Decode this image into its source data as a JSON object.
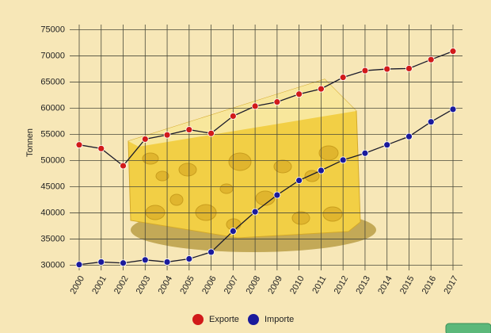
{
  "chart_data": {
    "type": "line",
    "y_label": "Tonnen",
    "x": [
      "2000",
      "2001",
      "2002",
      "2003",
      "2004",
      "2005",
      "2006",
      "2007",
      "2008",
      "2009",
      "2010",
      "2011",
      "2012",
      "2013",
      "2014",
      "2015",
      "2016",
      "2017"
    ],
    "series": [
      {
        "name": "Exporte",
        "color": "#d11a1a",
        "values": [
          53000,
          52300,
          49000,
          54100,
          54900,
          55900,
          55200,
          58500,
          60400,
          61200,
          62700,
          63700,
          65900,
          67200,
          67500,
          67600,
          69300,
          70900
        ]
      },
      {
        "name": "Importe",
        "color": "#1a1a9c",
        "values": [
          30100,
          30600,
          30400,
          31000,
          30600,
          31200,
          32500,
          36500,
          40200,
          43400,
          46200,
          48100,
          50100,
          51400,
          53000,
          54600,
          57400,
          59800
        ]
      }
    ],
    "ylim": [
      29000,
      76000
    ],
    "yticks": [
      30000,
      35000,
      40000,
      45000,
      50000,
      55000,
      60000,
      65000,
      70000,
      75000
    ],
    "grid": true
  }
}
